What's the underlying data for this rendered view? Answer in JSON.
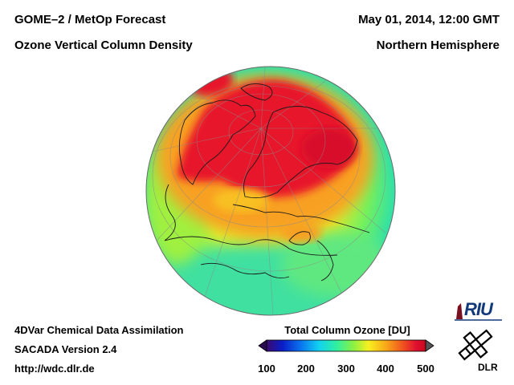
{
  "header": {
    "title_left_1": "GOME–2 / MetOp Forecast",
    "title_left_2": "Ozone Vertical Column Density",
    "title_right_1": "May 01, 2014, 12:00 GMT",
    "title_right_2": "Northern Hemisphere"
  },
  "footer": {
    "line1": "4DVar Chemical Data Assimilation",
    "line2": "SACADA Version 2.4",
    "line3": "http://wdc.dlr.de"
  },
  "colorbar": {
    "title": "Total Column Ozone [DU]",
    "ticks": [
      "100",
      "200",
      "300",
      "400",
      "500"
    ],
    "min": 100,
    "max": 500,
    "colors": [
      "#3a0a70",
      "#0a1ec8",
      "#0a78f0",
      "#12d2f0",
      "#30f0a0",
      "#90f040",
      "#f8f020",
      "#f8a818",
      "#f05020",
      "#e01030",
      "#c80a1e"
    ]
  },
  "logos": {
    "riu": "RIU",
    "dlr": "DLR"
  },
  "colors": {
    "high_ozone": "#e0102a",
    "mid_ozone": "#f8c020",
    "low_ozone": "#30e0a0"
  }
}
